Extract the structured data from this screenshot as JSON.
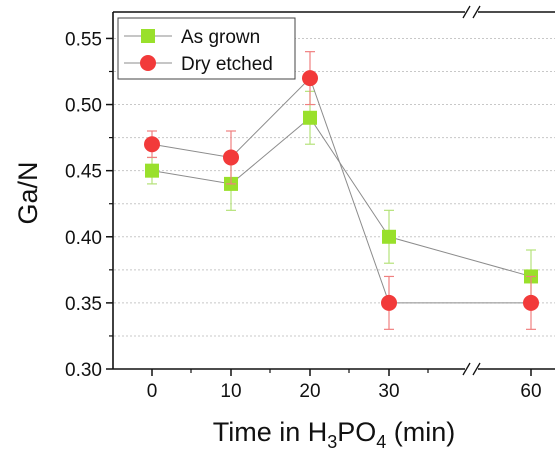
{
  "chart_data": {
    "type": "scatter",
    "title": "",
    "xlabel": {
      "prefix": "Time in H",
      "sub1": "3",
      "middle": "PO",
      "sub2": "4",
      "suffix": " (min)"
    },
    "ylabel": "Ga/N",
    "x": [
      0,
      10,
      20,
      30,
      60
    ],
    "x_tick_labels": [
      "0",
      "10",
      "20",
      "30",
      "60"
    ],
    "x_axis_break": "between 30 and 60",
    "ylim": [
      0.3,
      0.57
    ],
    "y_ticks": [
      0.3,
      0.35,
      0.4,
      0.45,
      0.5,
      0.55
    ],
    "y_tick_labels": [
      "0.30",
      "0.35",
      "0.40",
      "0.45",
      "0.50",
      "0.55"
    ],
    "grid": "horizontal, dashed",
    "legend_position": "top-left",
    "series": [
      {
        "name": "As grown",
        "marker": "square",
        "color": "#99e02b",
        "error_color": "#b5e27a",
        "values": [
          0.45,
          0.44,
          0.49,
          0.4,
          0.37
        ],
        "errors": [
          0.01,
          0.02,
          0.02,
          0.02,
          0.02
        ]
      },
      {
        "name": "Dry etched",
        "marker": "circle",
        "color": "#f23a3a",
        "error_color": "#f08080",
        "values": [
          0.47,
          0.46,
          0.52,
          0.35,
          0.35
        ],
        "errors": [
          0.01,
          0.02,
          0.02,
          0.02,
          0.02
        ]
      }
    ],
    "line_color": "#8c8c8c"
  }
}
